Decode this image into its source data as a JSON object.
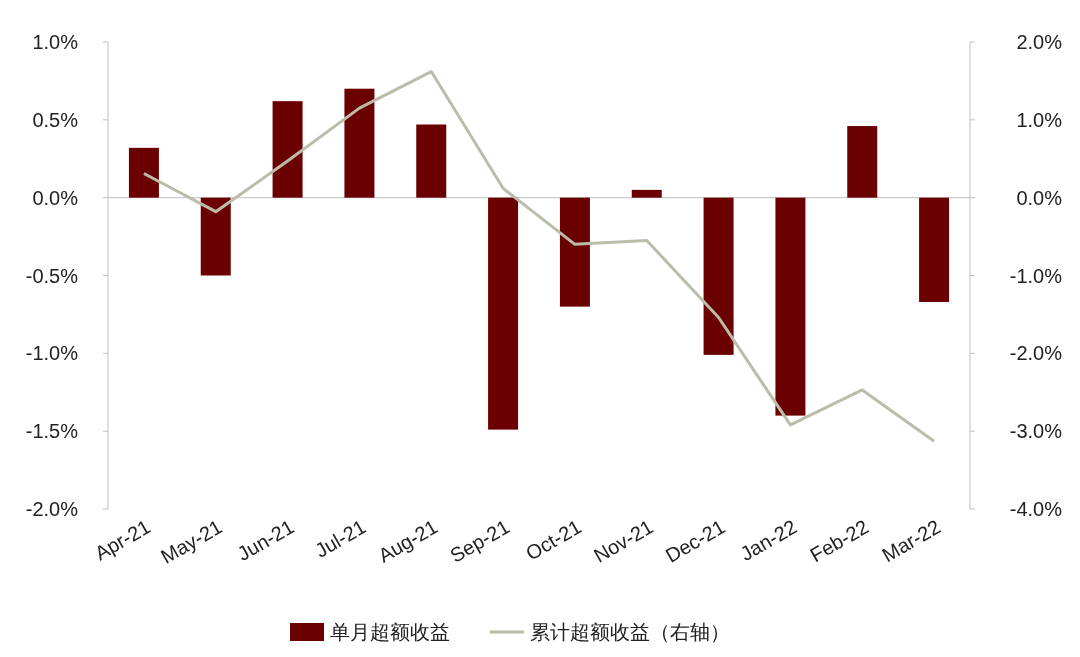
{
  "chart_data": {
    "type": "bar",
    "categories": [
      "Apr-21",
      "May-21",
      "Jun-21",
      "Jul-21",
      "Aug-21",
      "Sep-21",
      "Oct-21",
      "Nov-21",
      "Dec-21",
      "Jan-22",
      "Feb-22",
      "Mar-22"
    ],
    "series": [
      {
        "name": "单月超额收益",
        "color": "#6b0000",
        "values": [
          0.32,
          -0.5,
          0.62,
          0.7,
          0.47,
          -1.49,
          -0.7,
          0.05,
          -1.01,
          -1.4,
          0.46,
          -0.67
        ]
      },
      {
        "name": "累计超额收益（右轴）",
        "type": "line",
        "axis": "y2",
        "color": "#bcbcaa",
        "values": [
          0.31,
          -0.18,
          0.47,
          1.15,
          1.62,
          0.12,
          -0.6,
          -0.55,
          -1.54,
          -2.92,
          -2.47,
          -3.13
        ]
      }
    ],
    "ylim": [
      -2.0,
      1.0
    ],
    "yticks": [
      {
        "value": -2.0,
        "label": "-2.0%"
      },
      {
        "value": -1.5,
        "label": "-1.5%"
      },
      {
        "value": -1.0,
        "label": "-1.0%"
      },
      {
        "value": -0.5,
        "label": "-0.5%"
      },
      {
        "value": 0.0,
        "label": "0.0%"
      },
      {
        "value": 0.5,
        "label": "0.5%"
      },
      {
        "value": 1.0,
        "label": "1.0%"
      }
    ],
    "y2lim": [
      -4.0,
      2.0
    ],
    "y2ticks": [
      {
        "value": -4.0,
        "label": "-4.0%"
      },
      {
        "value": -3.0,
        "label": "-3.0%"
      },
      {
        "value": -2.0,
        "label": "-2.0%"
      },
      {
        "value": -1.0,
        "label": "-1.0%"
      },
      {
        "value": 0.0,
        "label": "0.0%"
      },
      {
        "value": 1.0,
        "label": "1.0%"
      },
      {
        "value": 2.0,
        "label": "2.0%"
      }
    ],
    "legend": "bottom",
    "marker": "none",
    "line_style": "solid"
  }
}
